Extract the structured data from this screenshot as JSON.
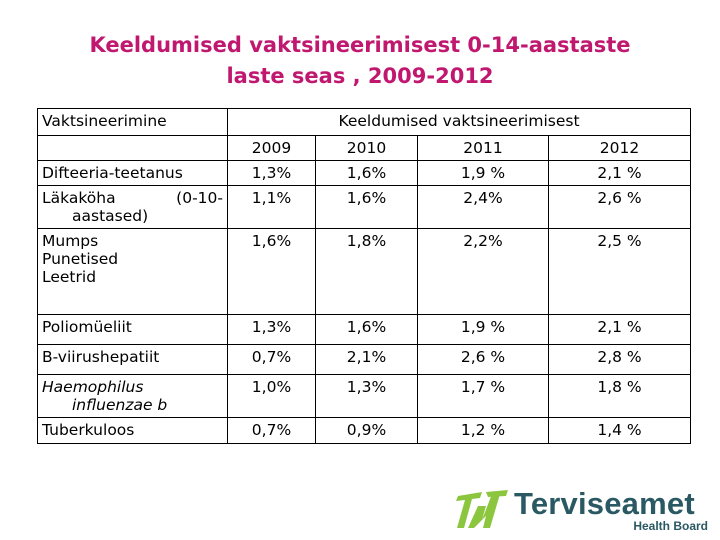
{
  "title_line1": "Keeldumised vaktsineerimisest 0-14-aastaste",
  "title_line2": "laste seas , 2009-2012",
  "table": {
    "col1_header": "Vaktsineerimine",
    "group_header": "Keeldumised vaktsineerimisest",
    "years": [
      "2009",
      "2010",
      "2011",
      "2012"
    ],
    "rows": [
      {
        "name": "Difteeria-teetanus",
        "values": [
          "1,3%",
          "1,6%",
          "1,9 %",
          "2,1 %"
        ]
      },
      {
        "name_line1": "Läkaköha",
        "name_mid": "(0-10-",
        "name_line2": "aastased)",
        "values": [
          "1,1%",
          "1,6%",
          "2,4%",
          "2,6 %"
        ]
      },
      {
        "name_lines": [
          "Mumps",
          "Punetised",
          "Leetrid"
        ],
        "values": [
          "1,6%",
          "1,8%",
          "2,2%",
          "2,5 %"
        ]
      },
      {
        "name": "Poliomüeliit",
        "values": [
          "1,3%",
          "1,6%",
          "1,9 %",
          "2,1 %"
        ]
      },
      {
        "name": "B-viirushepatiit",
        "values": [
          "0,7%",
          "2,1%",
          "2,6 %",
          "2,8 %"
        ]
      },
      {
        "name_line1": "Haemophilus",
        "name_line2": "influenzae b",
        "values": [
          "1,0%",
          "1,3%",
          "1,7 %",
          "1,8 %"
        ]
      },
      {
        "name": "Tuberkuloos",
        "values": [
          "0,7%",
          "0,9%",
          "1,2 %",
          "1,4 %"
        ]
      }
    ]
  },
  "logo": {
    "name": "Terviseamet",
    "subtitle": "Health Board",
    "green": "#8cc63e",
    "teal": "#2a5963"
  }
}
